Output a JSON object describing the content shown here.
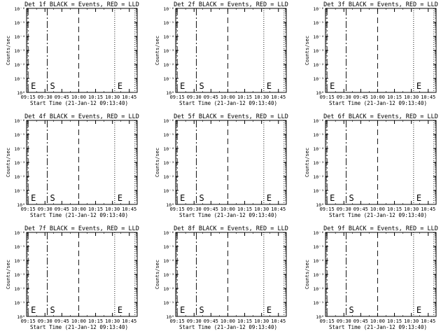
{
  "figure": {
    "panel_count": 9,
    "layout": "3x3 grid"
  },
  "chart_data": [
    {
      "type": "line",
      "title": "Det 1f BLACK = Events, RED = LLD",
      "ylabel": "Counts/sec",
      "xlabel": "Start Time (21-Jan-12 09:13:40)",
      "x_ticks": [
        "09:15",
        "09:30",
        "09:45",
        "10:00",
        "10:15",
        "10:30",
        "10:45"
      ],
      "xlim": [
        "09:13:40",
        "10:52"
      ],
      "y_scale": "log",
      "ylim": [
        1,
        1e-06
      ],
      "y_ticks": [
        "10⁰",
        "10⁻¹",
        "10⁻²",
        "10⁻³",
        "10⁻⁴",
        "10⁻⁵",
        "10⁻⁶"
      ],
      "markers": [
        {
          "label": "E",
          "time": "09:15:00",
          "style": "dash-dot"
        },
        {
          "label": "S",
          "time": "09:32:00",
          "style": "dash-dot"
        },
        {
          "label": "",
          "time": "10:00:00",
          "style": "dashed"
        },
        {
          "label": "E",
          "time": "10:32:00",
          "style": "dotted"
        },
        {
          "label": "",
          "time": "10:50:00",
          "style": "dotted"
        }
      ],
      "series": [],
      "events_color": "#000000",
      "lld_color": "#ff0000",
      "grid": false
    },
    {
      "type": "line",
      "title": "Det 2f BLACK = Events, RED = LLD",
      "ylabel": "Counts/sec",
      "xlabel": "Start Time (21-Jan-12 09:13:40)",
      "x_ticks": [
        "09:15",
        "09:30",
        "09:45",
        "10:00",
        "10:15",
        "10:30",
        "10:45"
      ],
      "xlim": [
        "09:13:40",
        "10:52"
      ],
      "y_scale": "log",
      "ylim": [
        1,
        1e-06
      ],
      "y_ticks": [
        "10⁰",
        "10⁻¹",
        "10⁻²",
        "10⁻³",
        "10⁻⁴",
        "10⁻⁵",
        "10⁻⁶"
      ],
      "markers": [
        {
          "label": "E",
          "time": "09:15:00",
          "style": "dash-dot"
        },
        {
          "label": "S",
          "time": "09:32:00",
          "style": "dash-dot"
        },
        {
          "label": "",
          "time": "10:00:00",
          "style": "dashed"
        },
        {
          "label": "E",
          "time": "10:32:00",
          "style": "dotted"
        },
        {
          "label": "",
          "time": "10:50:00",
          "style": "dotted"
        }
      ],
      "series": [],
      "events_color": "#000000",
      "lld_color": "#ff0000",
      "grid": false
    },
    {
      "type": "line",
      "title": "Det 3f BLACK = Events, RED = LLD",
      "ylabel": "Counts/sec",
      "xlabel": "Start Time (21-Jan-12 09:13:40)",
      "x_ticks": [
        "09:15",
        "09:30",
        "09:45",
        "10:00",
        "10:15",
        "10:30",
        "10:45"
      ],
      "xlim": [
        "09:13:40",
        "10:52"
      ],
      "y_scale": "log",
      "ylim": [
        1,
        1e-06
      ],
      "y_ticks": [
        "10⁰",
        "10⁻¹",
        "10⁻²",
        "10⁻³",
        "10⁻⁴",
        "10⁻⁵",
        "10⁻⁶"
      ],
      "markers": [
        {
          "label": "E",
          "time": "09:15:00",
          "style": "dash-dot"
        },
        {
          "label": "",
          "time": "09:32:00",
          "style": "dash-dot"
        },
        {
          "label": "",
          "time": "10:00:00",
          "style": "dashed"
        },
        {
          "label": "E",
          "time": "10:32:00",
          "style": "dotted"
        },
        {
          "label": "",
          "time": "10:50:00",
          "style": "dotted"
        }
      ],
      "series": [],
      "events_color": "#000000",
      "lld_color": "#ff0000",
      "grid": false
    },
    {
      "type": "line",
      "title": "Det 4f BLACK = Events, RED = LLD",
      "ylabel": "Counts/sec",
      "xlabel": "Start Time (21-Jan-12 09:13:40)",
      "x_ticks": [
        "09:15",
        "09:30",
        "09:45",
        "10:00",
        "10:15",
        "10:30",
        "10:45"
      ],
      "xlim": [
        "09:13:40",
        "10:52"
      ],
      "y_scale": "log",
      "ylim": [
        1,
        1e-06
      ],
      "y_ticks": [
        "10⁰",
        "10⁻¹",
        "10⁻²",
        "10⁻³",
        "10⁻⁴",
        "10⁻⁵",
        "10⁻⁶"
      ],
      "markers": [
        {
          "label": "E",
          "time": "09:15:00",
          "style": "dash-dot"
        },
        {
          "label": "S",
          "time": "09:32:00",
          "style": "dash-dot"
        },
        {
          "label": "",
          "time": "10:00:00",
          "style": "dashed"
        },
        {
          "label": "E",
          "time": "10:32:00",
          "style": "dotted"
        },
        {
          "label": "",
          "time": "10:50:00",
          "style": "dotted"
        }
      ],
      "series": [],
      "events_color": "#000000",
      "lld_color": "#ff0000",
      "grid": false
    },
    {
      "type": "line",
      "title": "Det 5f BLACK = Events, RED = LLD",
      "ylabel": "Counts/sec",
      "xlabel": "Start Time (21-Jan-12 09:13:40)",
      "x_ticks": [
        "09:15",
        "09:30",
        "09:45",
        "10:00",
        "10:15",
        "10:30",
        "10:45"
      ],
      "xlim": [
        "09:13:40",
        "10:52"
      ],
      "y_scale": "log",
      "ylim": [
        1,
        1e-06
      ],
      "y_ticks": [
        "10⁰",
        "10⁻¹",
        "10⁻²",
        "10⁻³",
        "10⁻⁴",
        "10⁻⁵",
        "10⁻⁶"
      ],
      "markers": [
        {
          "label": "E",
          "time": "09:15:00",
          "style": "dash-dot"
        },
        {
          "label": "S",
          "time": "09:32:00",
          "style": "dash-dot"
        },
        {
          "label": "",
          "time": "10:00:00",
          "style": "dashed"
        },
        {
          "label": "E",
          "time": "10:32:00",
          "style": "dotted"
        },
        {
          "label": "",
          "time": "10:50:00",
          "style": "dotted"
        }
      ],
      "series": [],
      "events_color": "#000000",
      "lld_color": "#ff0000",
      "grid": false
    },
    {
      "type": "line",
      "title": "Det 6f BLACK = Events, RED = LLD",
      "ylabel": "Counts/sec",
      "xlabel": "Start Time (21-Jan-12 09:13:40)",
      "x_ticks": [
        "09:15",
        "09:30",
        "09:45",
        "10:00",
        "10:15",
        "10:30",
        "10:45"
      ],
      "xlim": [
        "09:13:40",
        "10:52"
      ],
      "y_scale": "log",
      "ylim": [
        1,
        1e-06
      ],
      "y_ticks": [
        "10⁰",
        "10⁻¹",
        "10⁻²",
        "10⁻³",
        "10⁻⁴",
        "10⁻⁵",
        "10⁻⁶"
      ],
      "markers": [
        {
          "label": "E",
          "time": "09:15:00",
          "style": "dash-dot"
        },
        {
          "label": "S",
          "time": "09:32:00",
          "style": "dash-dot"
        },
        {
          "label": "",
          "time": "10:00:00",
          "style": "dashed"
        },
        {
          "label": "E",
          "time": "10:32:00",
          "style": "dotted"
        },
        {
          "label": "",
          "time": "10:50:00",
          "style": "dotted"
        }
      ],
      "series": [],
      "events_color": "#000000",
      "lld_color": "#ff0000",
      "grid": false
    },
    {
      "type": "line",
      "title": "Det 7f BLACK = Events, RED = LLD",
      "ylabel": "Counts/sec",
      "xlabel": "Start Time (21-Jan-12 09:13:40)",
      "x_ticks": [
        "09:15",
        "09:30",
        "09:45",
        "10:00",
        "10:15",
        "10:30",
        "10:45"
      ],
      "xlim": [
        "09:13:40",
        "10:52"
      ],
      "y_scale": "log",
      "ylim": [
        1,
        1e-06
      ],
      "y_ticks": [
        "10⁰",
        "10⁻¹",
        "10⁻²",
        "10⁻³",
        "10⁻⁴",
        "10⁻⁵",
        "10⁻⁶"
      ],
      "markers": [
        {
          "label": "E",
          "time": "09:15:00",
          "style": "dash-dot"
        },
        {
          "label": "S",
          "time": "09:32:00",
          "style": "dash-dot"
        },
        {
          "label": "",
          "time": "10:00:00",
          "style": "dashed"
        },
        {
          "label": "E",
          "time": "10:32:00",
          "style": "dotted"
        },
        {
          "label": "",
          "time": "10:50:00",
          "style": "dotted"
        }
      ],
      "series": [],
      "events_color": "#000000",
      "lld_color": "#ff0000",
      "grid": false
    },
    {
      "type": "line",
      "title": "Det 8f BLACK = Events, RED = LLD",
      "ylabel": "Counts/sec",
      "xlabel": "Start Time (21-Jan-12 09:13:40)",
      "x_ticks": [
        "09:15",
        "09:30",
        "09:45",
        "10:00",
        "10:15",
        "10:30",
        "10:45"
      ],
      "xlim": [
        "09:13:40",
        "10:52"
      ],
      "y_scale": "log",
      "ylim": [
        1,
        1e-06
      ],
      "y_ticks": [
        "10⁰",
        "10⁻¹",
        "10⁻²",
        "10⁻³",
        "10⁻⁴",
        "10⁻⁵",
        "10⁻⁶"
      ],
      "markers": [
        {
          "label": "E",
          "time": "09:15:00",
          "style": "dash-dot"
        },
        {
          "label": "S",
          "time": "09:32:00",
          "style": "dash-dot"
        },
        {
          "label": "",
          "time": "10:00:00",
          "style": "dashed"
        },
        {
          "label": "E",
          "time": "10:32:00",
          "style": "dotted"
        },
        {
          "label": "",
          "time": "10:50:00",
          "style": "dotted"
        }
      ],
      "series": [],
      "events_color": "#000000",
      "lld_color": "#ff0000",
      "grid": false
    },
    {
      "type": "line",
      "title": "Det 9f BLACK = Events, RED = LLD",
      "ylabel": "Counts/sec",
      "xlabel": "Start Time (21-Jan-12 09:13:40)",
      "x_ticks": [
        "09:15",
        "09:30",
        "09:45",
        "10:00",
        "10:15",
        "10:30",
        "10:45"
      ],
      "xlim": [
        "09:13:40",
        "10:52"
      ],
      "y_scale": "log",
      "ylim": [
        1,
        1e-06
      ],
      "y_ticks": [
        "10⁰",
        "10⁻¹",
        "10⁻²",
        "10⁻³",
        "10⁻⁴",
        "10⁻⁵",
        "10⁻⁶"
      ],
      "markers": [
        {
          "label": "",
          "time": "09:15:00",
          "style": "dash-dot"
        },
        {
          "label": "S",
          "time": "09:32:00",
          "style": "dash-dot"
        },
        {
          "label": "",
          "time": "10:00:00",
          "style": "dashed"
        },
        {
          "label": "E",
          "time": "10:32:00",
          "style": "dotted"
        },
        {
          "label": "",
          "time": "10:50:00",
          "style": "dotted"
        }
      ],
      "series": [],
      "events_color": "#000000",
      "lld_color": "#ff0000",
      "grid": false
    }
  ]
}
